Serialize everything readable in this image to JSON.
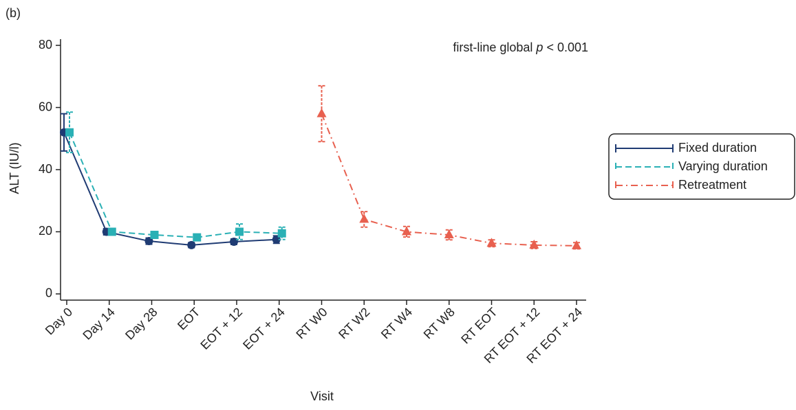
{
  "chart_data": {
    "type": "line",
    "panel_label": "(b)",
    "annotation": [
      "first-line global ",
      "p",
      " < 0.001"
    ],
    "x_label": "Visit",
    "y_label": "ALT (IU/l)",
    "categories": [
      "Day 0",
      "Day 14",
      "Day 28",
      "EOT",
      "EOT + 12",
      "EOT + 24",
      "RT W0",
      "RT W2",
      "RT W4",
      "RT W8",
      "RT EOT",
      "RT EOT + 12",
      "RT EOT + 24"
    ],
    "series": [
      {
        "name": "Fixed duration",
        "color": "#1f3b73",
        "linestyle": "solid",
        "marker": "circle",
        "values": [
          52,
          20,
          17,
          15.7,
          16.8,
          17.5,
          null,
          null,
          null,
          null,
          null,
          null,
          null
        ],
        "errors": [
          6,
          1,
          1,
          0.8,
          0.9,
          1.2,
          null,
          null,
          null,
          null,
          null,
          null,
          null
        ]
      },
      {
        "name": "Varying duration",
        "color": "#2ab0b5",
        "linestyle": "dashed",
        "marker": "square",
        "values": [
          52,
          20,
          19,
          18.2,
          20,
          19.5,
          null,
          null,
          null,
          null,
          null,
          null,
          null
        ],
        "errors": [
          6.5,
          1,
          1,
          1,
          2.5,
          2,
          null,
          null,
          null,
          null,
          null,
          null,
          null
        ]
      },
      {
        "name": "Retreatment",
        "color": "#e8604f",
        "linestyle": "dashdot",
        "marker": "triangle",
        "values": [
          null,
          null,
          null,
          null,
          null,
          null,
          58,
          24,
          20,
          19,
          16.3,
          15.7,
          15.5
        ],
        "errors": [
          null,
          null,
          null,
          null,
          null,
          null,
          9,
          2.5,
          1.7,
          1.6,
          1.1,
          1.1,
          1
        ]
      }
    ],
    "ylim": [
      -2,
      82
    ],
    "yticks": [
      0,
      20,
      40,
      60,
      80
    ],
    "legend": "right"
  }
}
